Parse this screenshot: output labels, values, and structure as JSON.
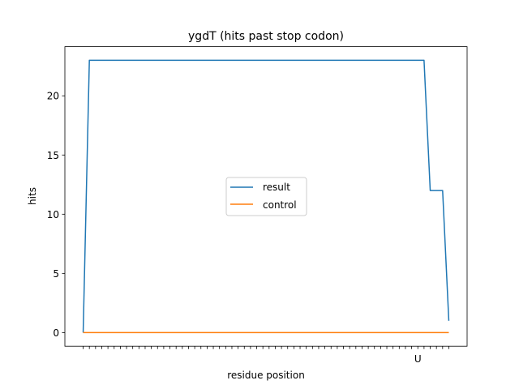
{
  "chart_data": {
    "type": "line",
    "title": "ygdT (hits past stop codon)",
    "xlabel": "residue position",
    "ylabel": "hits",
    "x": [
      0,
      1,
      2,
      3,
      4,
      5,
      6,
      7,
      8,
      9,
      10,
      11,
      12,
      13,
      14,
      15,
      16,
      17,
      18,
      19,
      20,
      21,
      22,
      23,
      24,
      25,
      26,
      27,
      28,
      29,
      30,
      31,
      32,
      33,
      34,
      35,
      36,
      37,
      38,
      39,
      40,
      41,
      42,
      43,
      44,
      45,
      46,
      47,
      48,
      49,
      50,
      51,
      52,
      53,
      54,
      55,
      56,
      57,
      58,
      59
    ],
    "x_tick_labels": [
      "",
      "",
      "",
      "",
      "",
      "",
      "",
      "",
      "",
      "",
      "",
      "",
      "",
      "",
      "",
      "",
      "",
      "",
      "",
      "",
      "",
      "",
      "",
      "",
      "",
      "",
      "",
      "",
      "",
      "",
      "",
      "",
      "",
      "",
      "",
      "",
      "",
      "",
      "",
      "",
      "",
      "",
      "",
      "",
      "",
      "",
      "",
      "",
      "",
      "",
      "",
      "",
      "",
      "",
      "U",
      "",
      "",
      "",
      "",
      "",
      ""
    ],
    "ylim": [
      -1.15,
      24.15
    ],
    "yticks": [
      0,
      5,
      10,
      15,
      20
    ],
    "grid": false,
    "legend_position": "center",
    "series": [
      {
        "name": "result",
        "color": "#1f77b4",
        "values": [
          0,
          23,
          23,
          23,
          23,
          23,
          23,
          23,
          23,
          23,
          23,
          23,
          23,
          23,
          23,
          23,
          23,
          23,
          23,
          23,
          23,
          23,
          23,
          23,
          23,
          23,
          23,
          23,
          23,
          23,
          23,
          23,
          23,
          23,
          23,
          23,
          23,
          23,
          23,
          23,
          23,
          23,
          23,
          23,
          23,
          23,
          23,
          23,
          23,
          23,
          23,
          23,
          23,
          23,
          23,
          23,
          12,
          12,
          12,
          1
        ],
        "x_override": [
          0,
          1,
          2,
          3,
          4,
          5,
          6,
          7,
          8,
          9,
          10,
          11,
          12,
          13,
          14,
          15,
          16,
          17,
          18,
          19,
          20,
          21,
          22,
          23,
          24,
          25,
          26,
          27,
          28,
          29,
          30,
          31,
          32,
          33,
          34,
          35,
          36,
          37,
          38,
          39,
          40,
          41,
          42,
          43,
          44,
          45,
          46,
          47,
          48,
          49,
          50,
          51,
          52,
          53,
          54,
          55,
          56,
          57,
          58,
          59
        ]
      },
      {
        "name": "control",
        "color": "#ff7f0e",
        "values": [
          0,
          0,
          0,
          0,
          0,
          0,
          0,
          0,
          0,
          0,
          0,
          0,
          0,
          0,
          0,
          0,
          0,
          0,
          0,
          0,
          0,
          0,
          0,
          0,
          0,
          0,
          0,
          0,
          0,
          0,
          0,
          0,
          0,
          0,
          0,
          0,
          0,
          0,
          0,
          0,
          0,
          0,
          0,
          0,
          0,
          0,
          0,
          0,
          0,
          0,
          0,
          0,
          0,
          0,
          0,
          0,
          0,
          0,
          0,
          0
        ]
      }
    ]
  }
}
